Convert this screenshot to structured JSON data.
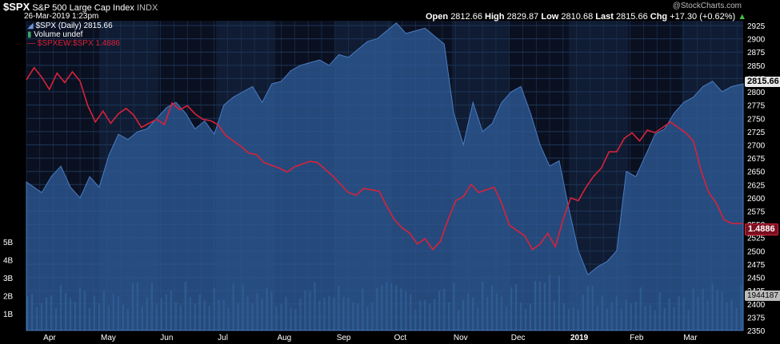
{
  "header": {
    "symbol": "$SPX",
    "name": "S&P 500 Large Cap Index",
    "exchange": "INDX",
    "date": "26-Mar-2019 1:23pm",
    "watermark": "@StockCharts.com",
    "open_label": "Open",
    "open": "2812.66",
    "high_label": "High",
    "high": "2829.87",
    "low_label": "Low",
    "low": "2810.68",
    "last_label": "Last",
    "last": "2815.66",
    "chg_label": "Chg",
    "chg": "+17.30 (+0.62%)"
  },
  "legend": {
    "item1": "$SPX (Daily) 2815.66",
    "item2": "Volume undef",
    "item3": "$SPXEW:$SPX 1.4886"
  },
  "price_tags": {
    "spx": "2815.66",
    "ratio": "1.4886",
    "volume": "1944187"
  },
  "colors": {
    "area_fill": "#2e5a96",
    "area_edge": "#4a7cc0",
    "ratio_line": "#d8223a",
    "volume_bar": "#3a7f9a",
    "grid": "#1d3658",
    "band_dark": "#0a1020",
    "band_light": "#101c33"
  },
  "chart_data": {
    "type": "area",
    "title": "$SPX S&P 500 Large Cap Index",
    "y_axis_right": {
      "min": 2350,
      "max": 2925,
      "ticks": [
        2350,
        2375,
        2400,
        2425,
        2450,
        2475,
        2500,
        2525,
        2550,
        2575,
        2600,
        2625,
        2650,
        2675,
        2700,
        2725,
        2750,
        2775,
        2800,
        2825,
        2850,
        2875,
        2900,
        2925
      ]
    },
    "y_axis_volume": {
      "ticks": [
        "1B",
        "2B",
        "3B",
        "4B",
        "5B"
      ],
      "tick_values": [
        1,
        2,
        3,
        4,
        5
      ]
    },
    "x_axis_labels": [
      "Apr",
      "May",
      "Jun",
      "Jul",
      "Aug",
      "Sep",
      "Oct",
      "Nov",
      "Dec",
      "2019",
      "Feb",
      "Mar"
    ],
    "x_axis_label_days": [
      0,
      30,
      61,
      91,
      122,
      153,
      183,
      214,
      244,
      275,
      306,
      334
    ],
    "x_range_days": [
      -8,
      366
    ],
    "series": [
      {
        "name": "$SPX (Daily)",
        "kind": "area",
        "x_days": [
          -8,
          0,
          5,
          10,
          15,
          20,
          25,
          30,
          35,
          40,
          45,
          50,
          55,
          60,
          65,
          70,
          75,
          80,
          85,
          90,
          95,
          100,
          105,
          110,
          115,
          120,
          125,
          130,
          135,
          140,
          145,
          150,
          155,
          160,
          165,
          170,
          175,
          180,
          185,
          190,
          195,
          200,
          205,
          210,
          215,
          220,
          225,
          230,
          235,
          240,
          245,
          250,
          255,
          260,
          265,
          270,
          275,
          280,
          285,
          290,
          295,
          300,
          305,
          310,
          315,
          320,
          325,
          330,
          335,
          340,
          345,
          350,
          355,
          360,
          366
        ],
        "values": [
          2630,
          2610,
          2640,
          2660,
          2620,
          2600,
          2640,
          2620,
          2680,
          2720,
          2710,
          2725,
          2730,
          2750,
          2770,
          2780,
          2760,
          2730,
          2745,
          2720,
          2775,
          2790,
          2800,
          2810,
          2780,
          2815,
          2820,
          2840,
          2850,
          2855,
          2860,
          2850,
          2870,
          2865,
          2880,
          2895,
          2900,
          2915,
          2930,
          2910,
          2915,
          2920,
          2905,
          2890,
          2760,
          2700,
          2780,
          2725,
          2740,
          2780,
          2800,
          2810,
          2760,
          2700,
          2660,
          2670,
          2580,
          2500,
          2455,
          2470,
          2480,
          2500,
          2650,
          2640,
          2680,
          2720,
          2730,
          2760,
          2780,
          2790,
          2810,
          2820,
          2800,
          2810,
          2815
        ]
      },
      {
        "name": "$SPXEW:$SPX",
        "kind": "line",
        "x_days": [
          -8,
          -4,
          0,
          4,
          8,
          12,
          16,
          20,
          24,
          28,
          32,
          36,
          40,
          44,
          48,
          52,
          56,
          60,
          64,
          68,
          72,
          76,
          80,
          84,
          88,
          92,
          96,
          100,
          104,
          108,
          112,
          116,
          120,
          124,
          128,
          132,
          136,
          140,
          144,
          148,
          152,
          156,
          160,
          164,
          168,
          172,
          176,
          180,
          184,
          188,
          192,
          196,
          200,
          204,
          208,
          212,
          216,
          220,
          224,
          228,
          232,
          236,
          240,
          244,
          248,
          252,
          256,
          260,
          264,
          268,
          272,
          276,
          280,
          284,
          288,
          292,
          296,
          300,
          304,
          308,
          312,
          316,
          320,
          324,
          328,
          332,
          336,
          340,
          344,
          348,
          352,
          356,
          360,
          366
        ],
        "values": [
          1.5415,
          1.546,
          1.5425,
          1.538,
          1.544,
          1.5405,
          1.5445,
          1.541,
          1.532,
          1.526,
          1.53,
          1.5255,
          1.529,
          1.531,
          1.5285,
          1.524,
          1.5255,
          1.527,
          1.525,
          1.533,
          1.5305,
          1.532,
          1.529,
          1.527,
          1.5265,
          1.525,
          1.521,
          1.519,
          1.517,
          1.5145,
          1.514,
          1.511,
          1.51,
          1.509,
          1.5075,
          1.5095,
          1.5105,
          1.5115,
          1.511,
          1.5085,
          1.506,
          1.503,
          1.5,
          1.499,
          1.5015,
          1.501,
          1.5005,
          1.495,
          1.49,
          1.487,
          1.485,
          1.481,
          1.483,
          1.479,
          1.482,
          1.49,
          1.497,
          1.4985,
          1.503,
          1.5,
          1.501,
          1.502,
          1.496,
          1.488,
          1.486,
          1.484,
          1.479,
          1.481,
          1.485,
          1.48,
          1.49,
          1.498,
          1.497,
          1.502,
          1.506,
          1.509,
          1.515,
          1.515,
          1.52,
          1.522,
          1.519,
          1.523,
          1.522,
          1.524,
          1.526,
          1.524,
          1.522,
          1.519,
          1.508,
          1.5,
          1.496,
          1.49,
          1.4886,
          1.4886
        ]
      },
      {
        "name": "Volume",
        "kind": "bar",
        "values_billions_range": [
          1.2,
          3.2
        ]
      }
    ]
  }
}
